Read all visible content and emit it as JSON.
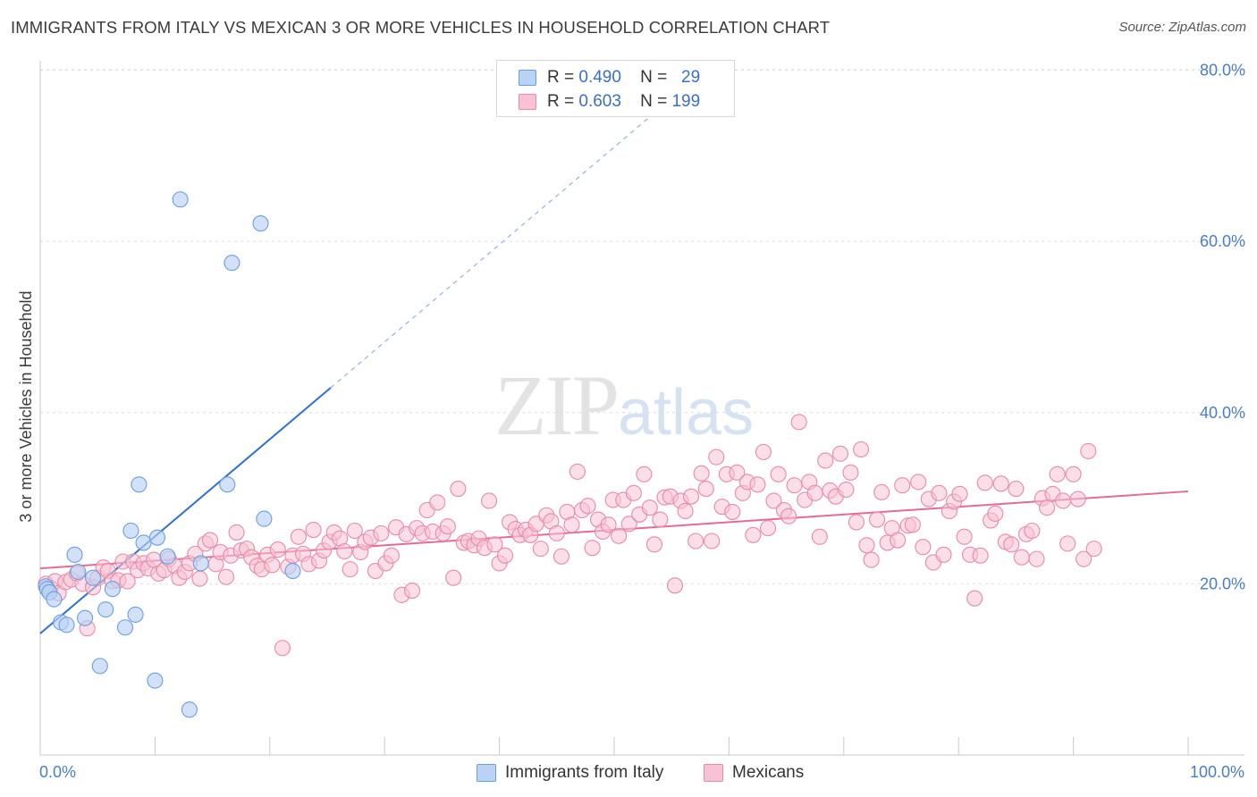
{
  "header": {
    "title": "IMMIGRANTS FROM ITALY VS MEXICAN 3 OR MORE VEHICLES IN HOUSEHOLD CORRELATION CHART",
    "source": "Source: ZipAtlas.com"
  },
  "watermark": {
    "zip": "ZIP",
    "atlas": "atlas"
  },
  "legend": {
    "r_label": "R =",
    "n_label": "N =",
    "rows": [
      {
        "r": "0.490",
        "n": "29"
      },
      {
        "r": "0.603",
        "n": "199"
      }
    ]
  },
  "bottom_legend": [
    "Immigrants from Italy",
    "Mexicans"
  ],
  "colors": {
    "blue_fill": "#b9d3f5",
    "blue_stroke": "#6d9ddd",
    "blue_line": "#2f6fcd",
    "pink_fill": "#f7c3d3",
    "pink_stroke": "#e88aa8",
    "pink_line": "#e46b96"
  },
  "chart_data": {
    "type": "scatter",
    "title": "IMMIGRANTS FROM ITALY VS MEXICAN 3 OR MORE VEHICLES IN HOUSEHOLD CORRELATION CHART",
    "xlabel": "",
    "ylabel": "3 or more Vehicles in Household",
    "xlim": [
      0,
      100
    ],
    "ylim": [
      0,
      82
    ],
    "x_ticks": [
      "0.0%",
      "100.0%"
    ],
    "y_ticks": [
      "20.0%",
      "40.0%",
      "60.0%",
      "80.0%"
    ],
    "y_tick_values": [
      20,
      40,
      60,
      80
    ],
    "grid": true,
    "legend_position": "top-center",
    "series": [
      {
        "name": "Immigrants from Italy",
        "color": "#6d9ddd",
        "points": [
          [
            0.5,
            19.7
          ],
          [
            0.6,
            19.4
          ],
          [
            0.8,
            19.0
          ],
          [
            1.2,
            18.2
          ],
          [
            1.8,
            15.5
          ],
          [
            2.3,
            15.2
          ],
          [
            3.0,
            23.4
          ],
          [
            3.3,
            21.4
          ],
          [
            3.9,
            16.0
          ],
          [
            4.6,
            20.7
          ],
          [
            5.2,
            10.4
          ],
          [
            5.7,
            17.0
          ],
          [
            6.3,
            19.4
          ],
          [
            7.4,
            14.9
          ],
          [
            7.9,
            26.2
          ],
          [
            8.3,
            16.4
          ],
          [
            8.6,
            31.6
          ],
          [
            9.0,
            24.8
          ],
          [
            10.0,
            8.7
          ],
          [
            10.2,
            25.4
          ],
          [
            11.1,
            23.2
          ],
          [
            12.2,
            64.9
          ],
          [
            13.0,
            5.3
          ],
          [
            14.0,
            22.4
          ],
          [
            16.3,
            31.6
          ],
          [
            16.7,
            57.5
          ],
          [
            19.2,
            62.1
          ],
          [
            19.5,
            27.6
          ],
          [
            22.0,
            21.5
          ]
        ],
        "trend": {
          "x": [
            0,
            25.3
          ],
          "y": [
            14.2,
            42.9
          ],
          "dashed_to": [
            53.5,
            75.0
          ]
        }
      },
      {
        "name": "Mexicans",
        "color": "#e88aa8",
        "points": [
          [
            0.5,
            20.0
          ],
          [
            0.9,
            19.5
          ],
          [
            1.3,
            20.3
          ],
          [
            1.6,
            18.9
          ],
          [
            2.2,
            20.2
          ],
          [
            2.7,
            20.5
          ],
          [
            3.2,
            21.2
          ],
          [
            3.7,
            20.0
          ],
          [
            4.1,
            14.8
          ],
          [
            4.6,
            19.6
          ],
          [
            5.0,
            20.7
          ],
          [
            5.5,
            21.9
          ],
          [
            5.9,
            21.5
          ],
          [
            6.3,
            20.3
          ],
          [
            6.8,
            20.4
          ],
          [
            7.2,
            22.6
          ],
          [
            7.6,
            20.3
          ],
          [
            8.1,
            22.6
          ],
          [
            8.5,
            21.6
          ],
          [
            9.0,
            22.4
          ],
          [
            9.4,
            21.8
          ],
          [
            9.9,
            22.8
          ],
          [
            10.3,
            21.2
          ],
          [
            10.8,
            21.6
          ],
          [
            11.2,
            22.9
          ],
          [
            11.7,
            22.1
          ],
          [
            12.1,
            20.7
          ],
          [
            12.6,
            21.4
          ],
          [
            13.0,
            22.4
          ],
          [
            13.5,
            23.5
          ],
          [
            13.9,
            20.6
          ],
          [
            14.4,
            24.7
          ],
          [
            14.8,
            25.1
          ],
          [
            15.3,
            22.3
          ],
          [
            15.7,
            23.7
          ],
          [
            16.2,
            20.8
          ],
          [
            16.6,
            23.3
          ],
          [
            17.1,
            26.0
          ],
          [
            17.5,
            23.9
          ],
          [
            18.0,
            24.1
          ],
          [
            18.4,
            23.1
          ],
          [
            18.9,
            22.1
          ],
          [
            19.3,
            21.7
          ],
          [
            19.8,
            23.4
          ],
          [
            20.2,
            22.2
          ],
          [
            20.7,
            24.0
          ],
          [
            21.1,
            12.5
          ],
          [
            21.6,
            22.0
          ],
          [
            22.0,
            23.3
          ],
          [
            22.5,
            25.5
          ],
          [
            22.9,
            23.5
          ],
          [
            23.4,
            22.3
          ],
          [
            23.8,
            26.3
          ],
          [
            24.3,
            22.7
          ],
          [
            24.7,
            23.9
          ],
          [
            25.2,
            24.9
          ],
          [
            25.6,
            26.0
          ],
          [
            26.1,
            25.3
          ],
          [
            26.5,
            23.8
          ],
          [
            27.0,
            21.7
          ],
          [
            27.4,
            26.2
          ],
          [
            27.9,
            23.7
          ],
          [
            28.3,
            24.9
          ],
          [
            28.8,
            25.4
          ],
          [
            29.2,
            21.5
          ],
          [
            29.7,
            25.9
          ],
          [
            30.1,
            22.4
          ],
          [
            30.6,
            23.3
          ],
          [
            31.0,
            26.6
          ],
          [
            31.5,
            18.7
          ],
          [
            31.9,
            25.8
          ],
          [
            32.4,
            19.2
          ],
          [
            32.8,
            26.5
          ],
          [
            33.3,
            25.9
          ],
          [
            33.7,
            28.6
          ],
          [
            34.2,
            26.1
          ],
          [
            34.6,
            29.5
          ],
          [
            35.1,
            25.9
          ],
          [
            35.5,
            26.7
          ],
          [
            36.0,
            20.7
          ],
          [
            36.4,
            31.1
          ],
          [
            36.9,
            24.8
          ],
          [
            37.3,
            25.0
          ],
          [
            37.8,
            24.5
          ],
          [
            38.2,
            25.3
          ],
          [
            38.7,
            24.2
          ],
          [
            39.1,
            29.7
          ],
          [
            39.6,
            24.6
          ],
          [
            40.0,
            22.4
          ],
          [
            40.5,
            23.3
          ],
          [
            40.9,
            27.2
          ],
          [
            41.4,
            26.4
          ],
          [
            41.8,
            25.7
          ],
          [
            42.3,
            26.3
          ],
          [
            42.7,
            25.7
          ],
          [
            43.2,
            27.0
          ],
          [
            43.6,
            24.1
          ],
          [
            44.1,
            28.0
          ],
          [
            44.5,
            27.3
          ],
          [
            45.0,
            25.9
          ],
          [
            45.4,
            23.2
          ],
          [
            45.9,
            28.4
          ],
          [
            46.3,
            26.9
          ],
          [
            46.8,
            33.1
          ],
          [
            47.2,
            28.6
          ],
          [
            47.7,
            29.1
          ],
          [
            48.1,
            24.2
          ],
          [
            48.6,
            27.5
          ],
          [
            49.0,
            26.1
          ],
          [
            49.5,
            26.9
          ],
          [
            49.9,
            29.8
          ],
          [
            50.4,
            25.6
          ],
          [
            50.8,
            29.8
          ],
          [
            51.3,
            27.0
          ],
          [
            51.7,
            30.6
          ],
          [
            52.2,
            28.1
          ],
          [
            52.6,
            32.8
          ],
          [
            53.1,
            28.9
          ],
          [
            53.5,
            24.6
          ],
          [
            54.0,
            27.5
          ],
          [
            54.4,
            30.1
          ],
          [
            54.9,
            30.2
          ],
          [
            55.3,
            19.8
          ],
          [
            55.8,
            29.7
          ],
          [
            56.2,
            28.5
          ],
          [
            56.7,
            30.2
          ],
          [
            57.1,
            25.0
          ],
          [
            57.6,
            32.9
          ],
          [
            58.0,
            31.1
          ],
          [
            58.5,
            25.0
          ],
          [
            58.9,
            34.8
          ],
          [
            59.4,
            29.0
          ],
          [
            59.8,
            32.8
          ],
          [
            60.3,
            28.4
          ],
          [
            60.7,
            33.0
          ],
          [
            61.2,
            30.6
          ],
          [
            61.6,
            31.9
          ],
          [
            62.1,
            25.7
          ],
          [
            62.5,
            31.6
          ],
          [
            63.0,
            35.4
          ],
          [
            63.4,
            26.5
          ],
          [
            63.9,
            29.7
          ],
          [
            64.3,
            32.8
          ],
          [
            64.8,
            28.6
          ],
          [
            65.2,
            27.9
          ],
          [
            65.7,
            31.5
          ],
          [
            66.1,
            38.9
          ],
          [
            66.6,
            29.8
          ],
          [
            67.0,
            31.9
          ],
          [
            67.5,
            30.6
          ],
          [
            67.9,
            25.5
          ],
          [
            68.4,
            34.4
          ],
          [
            68.8,
            30.9
          ],
          [
            69.3,
            30.2
          ],
          [
            69.7,
            35.2
          ],
          [
            70.2,
            31.0
          ],
          [
            70.6,
            33.0
          ],
          [
            71.1,
            27.2
          ],
          [
            71.5,
            35.7
          ],
          [
            72.0,
            24.5
          ],
          [
            72.4,
            22.8
          ],
          [
            72.9,
            27.5
          ],
          [
            73.3,
            30.7
          ],
          [
            73.8,
            24.8
          ],
          [
            74.2,
            26.5
          ],
          [
            74.7,
            25.1
          ],
          [
            75.1,
            31.5
          ],
          [
            75.6,
            26.8
          ],
          [
            76.0,
            26.9
          ],
          [
            76.5,
            31.9
          ],
          [
            76.9,
            24.3
          ],
          [
            77.4,
            29.9
          ],
          [
            77.8,
            22.5
          ],
          [
            78.3,
            30.6
          ],
          [
            78.7,
            23.4
          ],
          [
            79.2,
            28.5
          ],
          [
            79.6,
            29.6
          ],
          [
            80.1,
            30.5
          ],
          [
            80.5,
            25.5
          ],
          [
            81.0,
            23.4
          ],
          [
            81.4,
            18.3
          ],
          [
            81.9,
            23.3
          ],
          [
            82.3,
            31.8
          ],
          [
            82.8,
            27.4
          ],
          [
            83.2,
            28.2
          ],
          [
            83.7,
            31.7
          ],
          [
            84.1,
            24.9
          ],
          [
            84.6,
            24.6
          ],
          [
            85.0,
            31.1
          ],
          [
            85.5,
            23.1
          ],
          [
            85.9,
            25.8
          ],
          [
            86.4,
            26.2
          ],
          [
            86.8,
            22.9
          ],
          [
            87.3,
            30.0
          ],
          [
            87.7,
            28.9
          ],
          [
            88.2,
            30.5
          ],
          [
            88.6,
            32.8
          ],
          [
            89.1,
            29.7
          ],
          [
            89.5,
            24.7
          ],
          [
            90.0,
            32.8
          ],
          [
            90.4,
            29.9
          ],
          [
            90.9,
            22.9
          ],
          [
            91.3,
            35.5
          ],
          [
            91.8,
            24.1
          ]
        ],
        "trend": {
          "x": [
            0,
            100
          ],
          "y": [
            21.8,
            30.8
          ]
        }
      }
    ]
  }
}
